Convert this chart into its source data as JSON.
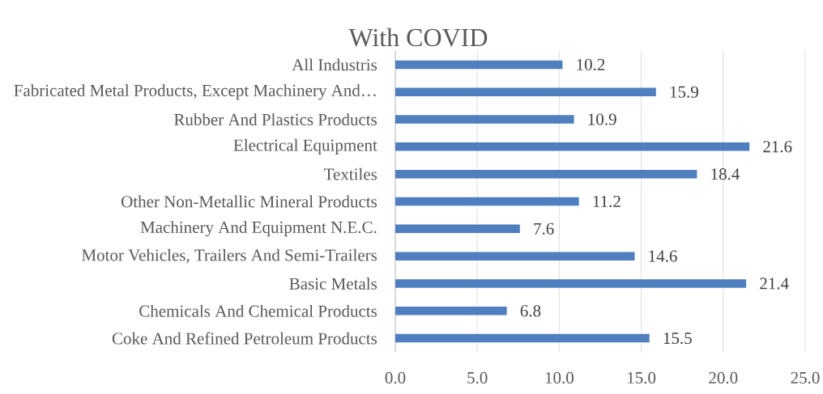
{
  "chart_data": {
    "type": "bar",
    "orientation": "horizontal",
    "title": "With COVID",
    "categories": [
      "All Industris",
      "Fabricated Metal Products, Except Machinery And…",
      "Rubber And Plastics Products",
      "Electrical Equipment",
      "Textiles",
      "Other Non-Metallic Mineral Products",
      "Machinery And Equipment N.E.C.",
      "Motor Vehicles, Trailers And Semi-Trailers",
      "Basic Metals",
      "Chemicals And Chemical Products",
      "Coke And Refined Petroleum Products"
    ],
    "values": [
      10.2,
      15.9,
      10.9,
      21.6,
      18.4,
      11.2,
      7.6,
      14.6,
      21.4,
      6.8,
      15.5
    ],
    "color": "#4f7fbe",
    "xlim": [
      0,
      25
    ],
    "xticks": [
      {
        "value": 0,
        "label": "0.0"
      },
      {
        "value": 5,
        "label": "5.0"
      },
      {
        "value": 10,
        "label": "10.0"
      },
      {
        "value": 15,
        "label": "15.0"
      },
      {
        "value": 20,
        "label": "20.0"
      },
      {
        "value": 25,
        "label": "25.0"
      }
    ],
    "grid": "x",
    "data_labels": true
  }
}
